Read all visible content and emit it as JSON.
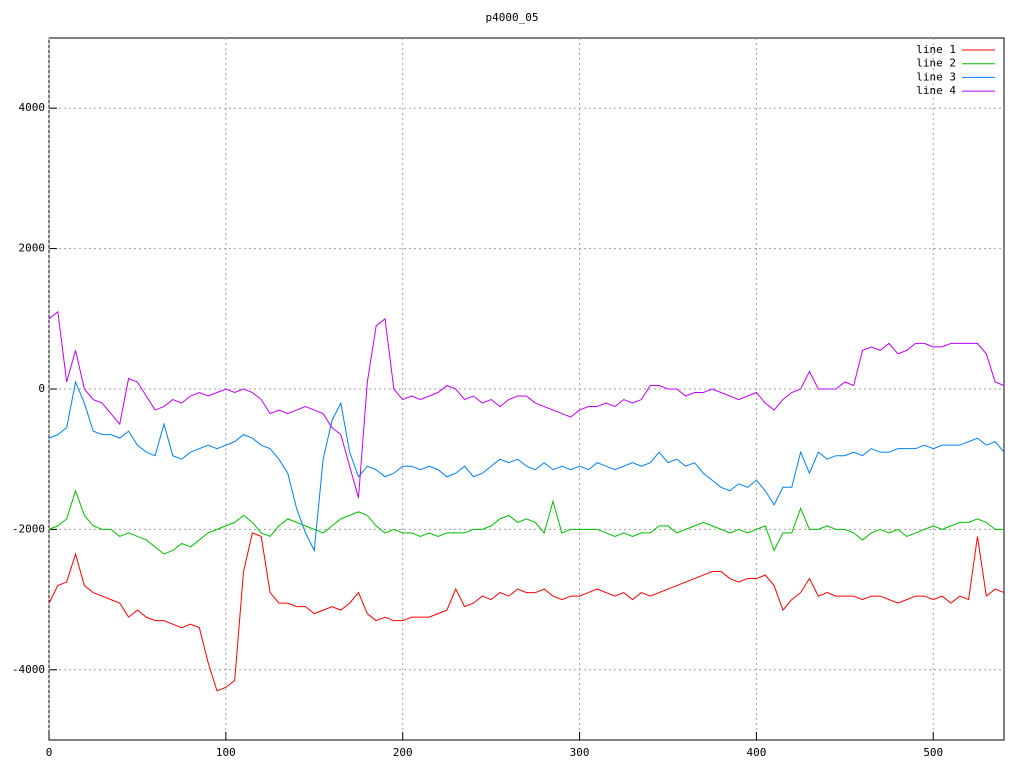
{
  "chart_data": {
    "type": "line",
    "title": "p4000_05",
    "x": [
      0,
      5,
      10,
      15,
      20,
      25,
      30,
      35,
      40,
      45,
      50,
      55,
      60,
      65,
      70,
      75,
      80,
      85,
      90,
      95,
      100,
      105,
      110,
      115,
      120,
      125,
      130,
      135,
      140,
      145,
      150,
      155,
      160,
      165,
      170,
      175,
      180,
      185,
      190,
      195,
      200,
      205,
      210,
      215,
      220,
      225,
      230,
      235,
      240,
      245,
      250,
      255,
      260,
      265,
      270,
      275,
      280,
      285,
      290,
      295,
      300,
      305,
      310,
      315,
      320,
      325,
      330,
      335,
      340,
      345,
      350,
      355,
      360,
      365,
      370,
      375,
      380,
      385,
      390,
      395,
      400,
      405,
      410,
      415,
      420,
      425,
      430,
      435,
      440,
      445,
      450,
      455,
      460,
      465,
      470,
      475,
      480,
      485,
      490,
      495,
      500,
      505,
      510,
      515,
      520,
      525,
      530,
      535,
      540
    ],
    "series": [
      {
        "name": "line 1",
        "color": "#ff0000",
        "values": [
          -3050,
          -2800,
          -2750,
          -2350,
          -2800,
          -2900,
          -2950,
          -3000,
          -3050,
          -3250,
          -3150,
          -3250,
          -3300,
          -3300,
          -3350,
          -3400,
          -3350,
          -3400,
          -3900,
          -4300,
          -4250,
          -4150,
          -2600,
          -2050,
          -2100,
          -2900,
          -3050,
          -3050,
          -3100,
          -3100,
          -3200,
          -3150,
          -3100,
          -3150,
          -3050,
          -2900,
          -3200,
          -3300,
          -3250,
          -3300,
          -3300,
          -3250,
          -3250,
          -3250,
          -3200,
          -3150,
          -2850,
          -3100,
          -3050,
          -2950,
          -3000,
          -2900,
          -2950,
          -2850,
          -2900,
          -2900,
          -2850,
          -2950,
          -3000,
          -2950,
          -2950,
          -2900,
          -2850,
          -2900,
          -2950,
          -2900,
          -3000,
          -2900,
          -2950,
          -2900,
          -2850,
          -2800,
          -2750,
          -2700,
          -2650,
          -2600,
          -2600,
          -2700,
          -2750,
          -2700,
          -2700,
          -2650,
          -2800,
          -3150,
          -3000,
          -2900,
          -2700,
          -2950,
          -2900,
          -2950,
          -2950,
          -2950,
          -3000,
          -2950,
          -2950,
          -3000,
          -3050,
          -3000,
          -2950,
          -2950,
          -3000,
          -2950,
          -3050,
          -2950,
          -3000,
          -2100,
          -2950,
          -2850,
          -2900
        ]
      },
      {
        "name": "line 2",
        "color": "#00c000",
        "values": [
          -2000,
          -1950,
          -1850,
          -1450,
          -1800,
          -1950,
          -2000,
          -2000,
          -2100,
          -2050,
          -2100,
          -2150,
          -2250,
          -2350,
          -2300,
          -2200,
          -2250,
          -2150,
          -2050,
          -2000,
          -1950,
          -1900,
          -1800,
          -1900,
          -2050,
          -2100,
          -1950,
          -1850,
          -1900,
          -1950,
          -2000,
          -2050,
          -1950,
          -1850,
          -1800,
          -1750,
          -1800,
          -1950,
          -2050,
          -2000,
          -2050,
          -2050,
          -2100,
          -2050,
          -2100,
          -2050,
          -2050,
          -2050,
          -2000,
          -2000,
          -1950,
          -1850,
          -1800,
          -1900,
          -1850,
          -1900,
          -2050,
          -1600,
          -2050,
          -2000,
          -2000,
          -2000,
          -2000,
          -2050,
          -2100,
          -2050,
          -2100,
          -2050,
          -2050,
          -1950,
          -1950,
          -2050,
          -2000,
          -1950,
          -1900,
          -1950,
          -2000,
          -2050,
          -2000,
          -2050,
          -2000,
          -1950,
          -2300,
          -2050,
          -2050,
          -1700,
          -2000,
          -2000,
          -1950,
          -2000,
          -2000,
          -2050,
          -2150,
          -2050,
          -2000,
          -2050,
          -2000,
          -2100,
          -2050,
          -2000,
          -1950,
          -2000,
          -1950,
          -1900,
          -1900,
          -1850,
          -1900,
          -2000,
          -2000
        ]
      },
      {
        "name": "line 3",
        "color": "#0080ff",
        "values": [
          -700,
          -650,
          -550,
          100,
          -200,
          -600,
          -650,
          -650,
          -700,
          -600,
          -800,
          -900,
          -950,
          -500,
          -950,
          -1000,
          -900,
          -850,
          -800,
          -850,
          -800,
          -750,
          -650,
          -700,
          -800,
          -850,
          -1000,
          -1200,
          -1700,
          -2050,
          -2300,
          -1000,
          -450,
          -200,
          -900,
          -1250,
          -1100,
          -1150,
          -1250,
          -1200,
          -1100,
          -1100,
          -1150,
          -1100,
          -1150,
          -1250,
          -1200,
          -1100,
          -1250,
          -1200,
          -1100,
          -1000,
          -1050,
          -1000,
          -1100,
          -1150,
          -1050,
          -1150,
          -1100,
          -1150,
          -1100,
          -1150,
          -1050,
          -1100,
          -1150,
          -1100,
          -1050,
          -1100,
          -1050,
          -900,
          -1050,
          -1000,
          -1100,
          -1050,
          -1200,
          -1300,
          -1400,
          -1450,
          -1350,
          -1400,
          -1300,
          -1450,
          -1650,
          -1400,
          -1400,
          -900,
          -1200,
          -900,
          -1000,
          -950,
          -950,
          -900,
          -950,
          -850,
          -900,
          -900,
          -850,
          -850,
          -850,
          -800,
          -850,
          -800,
          -800,
          -800,
          -750,
          -700,
          -800,
          -750,
          -900
        ]
      },
      {
        "name": "line 4",
        "color": "#c000ff",
        "values": [
          1000,
          1100,
          100,
          550,
          0,
          -150,
          -200,
          -350,
          -500,
          150,
          100,
          -100,
          -300,
          -250,
          -150,
          -200,
          -100,
          -50,
          -100,
          -50,
          0,
          -50,
          0,
          -50,
          -150,
          -350,
          -300,
          -350,
          -300,
          -250,
          -300,
          -350,
          -550,
          -650,
          -1100,
          -1550,
          100,
          900,
          1000,
          0,
          -150,
          -100,
          -150,
          -100,
          -50,
          50,
          0,
          -150,
          -100,
          -200,
          -150,
          -250,
          -150,
          -100,
          -100,
          -200,
          -250,
          -300,
          -350,
          -400,
          -300,
          -250,
          -250,
          -200,
          -250,
          -150,
          -200,
          -150,
          50,
          50,
          0,
          0,
          -100,
          -50,
          -50,
          0,
          -50,
          -100,
          -150,
          -100,
          -50,
          -200,
          -300,
          -150,
          -50,
          0,
          250,
          0,
          0,
          0,
          100,
          50,
          550,
          600,
          550,
          650,
          500,
          550,
          650,
          650,
          600,
          600,
          650,
          650,
          650,
          650,
          500,
          100,
          50
        ]
      }
    ],
    "xlim": [
      0,
      540
    ],
    "xticks": [
      0,
      100,
      200,
      300,
      400,
      500
    ],
    "ylim": [
      -5000,
      5000
    ],
    "yticks": [
      -4000,
      -2000,
      0,
      2000,
      4000
    ],
    "grid": true,
    "legend": "top-right"
  }
}
